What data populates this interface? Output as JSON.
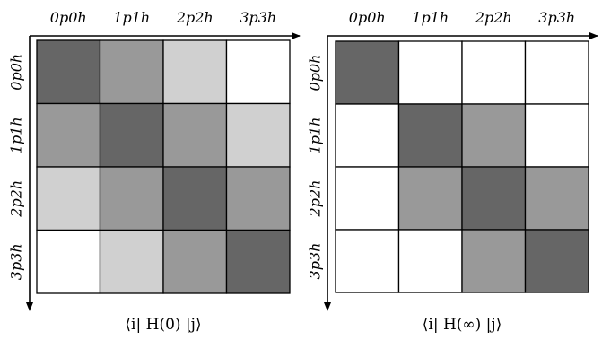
{
  "basis_labels": [
    "0p0h",
    "1p1h",
    "2p2h",
    "3p3h"
  ],
  "level_colors": [
    "#ffffff",
    "#d0d0d0",
    "#999999",
    "#666666"
  ],
  "matrices": [
    {
      "caption": "⟨i| H(0) |j⟩",
      "levels": [
        [
          3,
          2,
          1,
          0
        ],
        [
          2,
          3,
          2,
          1
        ],
        [
          1,
          2,
          3,
          2
        ],
        [
          0,
          1,
          2,
          3
        ]
      ]
    },
    {
      "caption": "⟨i| H(∞) |j⟩",
      "levels": [
        [
          3,
          0,
          0,
          0
        ],
        [
          0,
          3,
          2,
          0
        ],
        [
          0,
          2,
          3,
          2
        ],
        [
          0,
          0,
          2,
          3
        ]
      ]
    }
  ]
}
